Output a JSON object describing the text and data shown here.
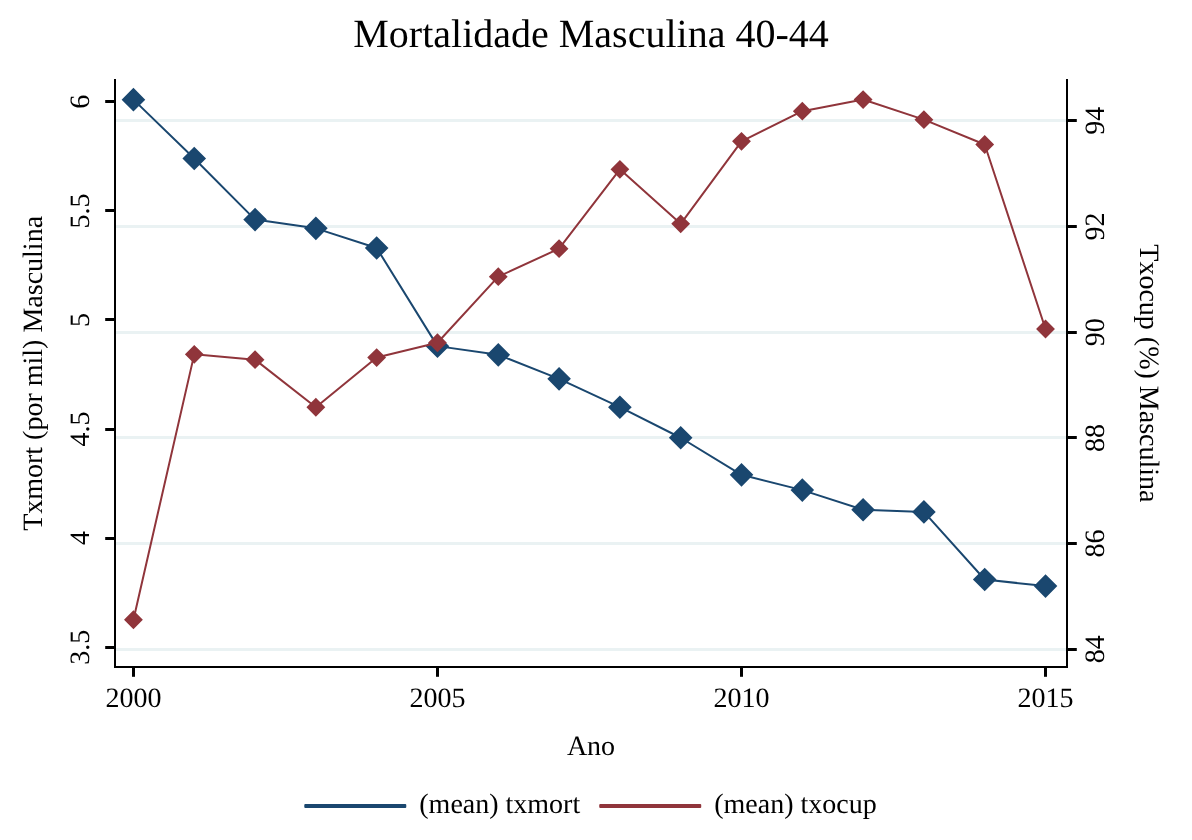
{
  "chart_data": {
    "type": "line",
    "title": "Mortalidade Masculina 40-44",
    "xlabel": "Ano",
    "ylabel": "Txmort (por mil) Masculina",
    "y2label": "Txocup (%) Masculina",
    "x": [
      2000,
      2001,
      2002,
      2003,
      2004,
      2005,
      2006,
      2007,
      2008,
      2009,
      2010,
      2011,
      2012,
      2013,
      2014,
      2015
    ],
    "series": [
      {
        "name": "(mean) txmort",
        "color": "#1a476f",
        "values": [
          6.01,
          5.74,
          5.46,
          5.42,
          5.33,
          4.88,
          4.84,
          4.73,
          4.6,
          4.46,
          4.29,
          4.22,
          4.13,
          4.12,
          3.81,
          3.78
        ]
      },
      {
        "name": "(mean) txocup",
        "color": "#90353b",
        "axis": "y2",
        "values": [
          84.56,
          89.58,
          89.48,
          88.58,
          89.52,
          89.8,
          91.05,
          91.58,
          93.08,
          92.05,
          93.61,
          94.18,
          94.4,
          94.02,
          93.55,
          90.06
        ]
      }
    ],
    "xlim": [
      1999.7,
      2015.35
    ],
    "xticks": [
      2000,
      2005,
      2010,
      2015
    ],
    "ylim": [
      3.41,
      6.1
    ],
    "yticks": [
      {
        "value": 3.5,
        "label": "3.5"
      },
      {
        "value": 4,
        "label": "4"
      },
      {
        "value": 4.5,
        "label": "4.5"
      },
      {
        "value": 5,
        "label": "5"
      },
      {
        "value": 5.5,
        "label": "5.5"
      },
      {
        "value": 6,
        "label": "6"
      }
    ],
    "y2lim": [
      83.67,
      94.77
    ],
    "y2ticks": [
      84,
      86,
      88,
      90,
      92,
      94
    ],
    "grid": true,
    "legend": "bottom",
    "marker": "diamond",
    "line_style": "solid"
  }
}
